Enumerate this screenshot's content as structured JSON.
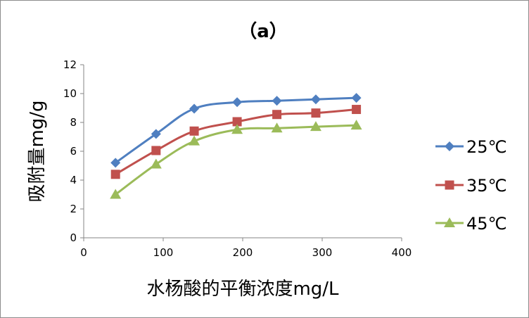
{
  "chart_data": {
    "type": "line",
    "title": "（a）",
    "xlabel": "水杨酸的平衡浓度mg/L",
    "ylabel": "吸附量mg/g",
    "xlim": [
      0,
      400
    ],
    "ylim": [
      0,
      12
    ],
    "xticks": [
      0,
      100,
      200,
      300,
      400
    ],
    "yticks": [
      0,
      2,
      4,
      6,
      8,
      10,
      12
    ],
    "grid": false,
    "legend_position": "right",
    "series": [
      {
        "name": "25℃",
        "color": "#4f7fc0",
        "marker": "diamond",
        "x": [
          40,
          91,
          139,
          193,
          243,
          292,
          343
        ],
        "y": [
          5.2,
          7.2,
          8.95,
          9.4,
          9.5,
          9.6,
          9.7
        ]
      },
      {
        "name": "35℃",
        "color": "#c0504d",
        "marker": "square",
        "x": [
          40,
          91,
          139,
          193,
          243,
          292,
          343
        ],
        "y": [
          4.4,
          6.05,
          7.4,
          8.05,
          8.55,
          8.65,
          8.9
        ]
      },
      {
        "name": "45℃",
        "color": "#9bbb59",
        "marker": "triangle",
        "x": [
          40,
          91,
          139,
          193,
          243,
          292,
          343
        ],
        "y": [
          3.0,
          5.1,
          6.7,
          7.5,
          7.6,
          7.7,
          7.8
        ]
      }
    ]
  }
}
